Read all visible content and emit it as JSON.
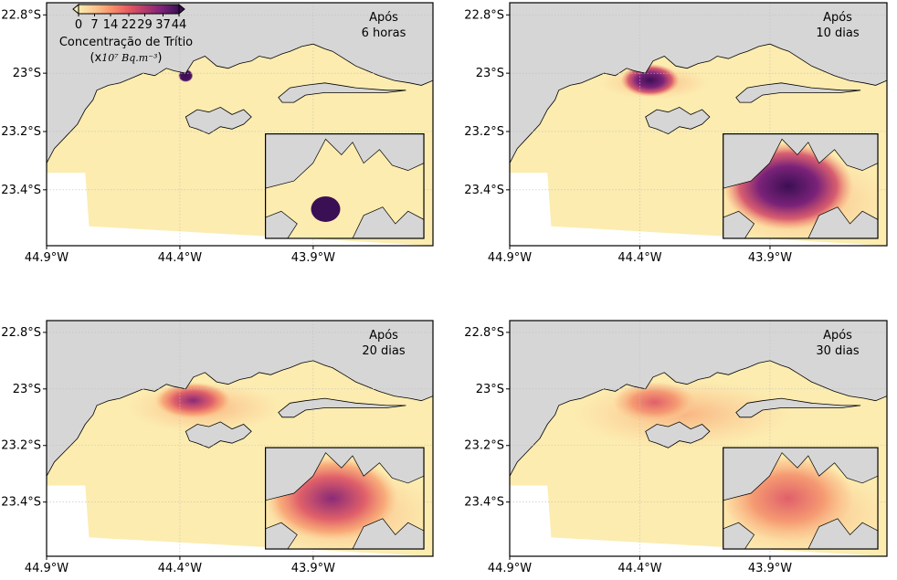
{
  "figure": {
    "panels": [
      {
        "id": "p1",
        "time_label_line1": "Após",
        "time_label_line2": "6 horas",
        "stage": 0
      },
      {
        "id": "p2",
        "time_label_line1": "Após",
        "time_label_line2": "10 dias",
        "stage": 1
      },
      {
        "id": "p3",
        "time_label_line1": "Após",
        "time_label_line2": "20 dias",
        "stage": 2
      },
      {
        "id": "p4",
        "time_label_line1": "Após",
        "time_label_line2": "30 dias",
        "stage": 3
      }
    ],
    "axes": {
      "y_ticks": [
        "22.8°S",
        "23°S",
        "23.2°S",
        "23.4°S"
      ],
      "x_ticks": [
        "44.9°W",
        "44.4°W",
        "43.9°W"
      ]
    },
    "colorbar": {
      "title": "Concentração de Trítio",
      "unit_prefix": "(x",
      "unit_math": "10⁷ Bq.m⁻³",
      "unit_suffix": ")",
      "tick_labels": [
        "0",
        "7",
        "14",
        "22",
        "29",
        "37",
        "44"
      ],
      "tick_values": [
        0,
        7,
        14,
        22,
        29,
        37,
        44
      ],
      "colormap": "magma_r",
      "colors": [
        "#fcecb0",
        "#fbc48e",
        "#f8906a",
        "#e45a62",
        "#b43b6d",
        "#7a2279",
        "#3b0f53"
      ]
    },
    "colors": {
      "land": "#d6d6d6",
      "water_low": "#fcecb0",
      "grid": "#bfbfbf",
      "frame": "#000000"
    }
  }
}
